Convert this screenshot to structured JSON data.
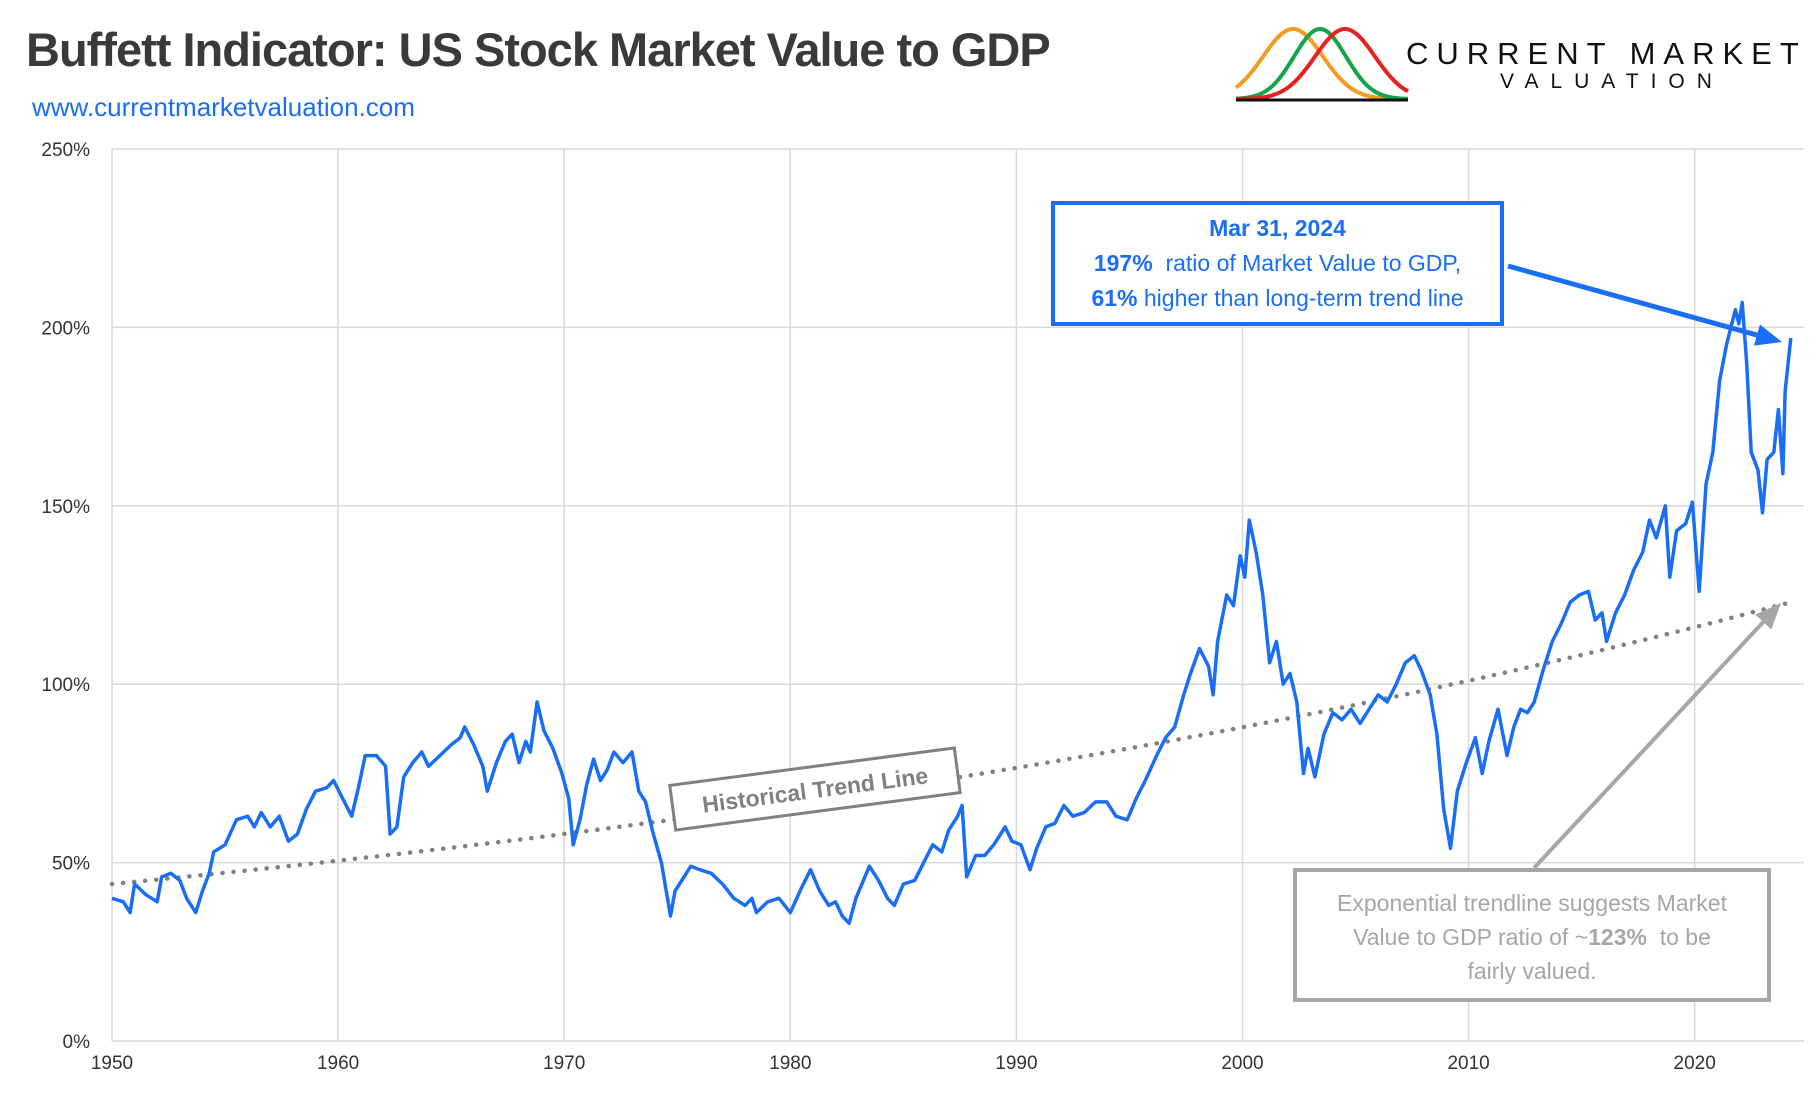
{
  "header": {
    "title": "Buffett Indicator: US Stock Market Value to GDP",
    "url": "www.currentmarketvaluation.com"
  },
  "logo": {
    "line1": "CURRENT MARKET",
    "line2": "VALUATION",
    "colors": [
      "#f39c1f",
      "#16a34a",
      "#e52222"
    ]
  },
  "annotations": {
    "latest": {
      "date": "Mar 31, 2024",
      "ratio": "197%",
      "ratio_text": "ratio of Market Value to GDP,",
      "above": "61%",
      "above_text": "higher than long-term trend line"
    },
    "trend_label": "Historical Trend Line",
    "fair": {
      "text1": "Exponential trendline suggests Market",
      "text2a": "Value to GDP ratio of ~",
      "value": "123%",
      "text2b": "to be",
      "text3": "fairly valued."
    }
  },
  "colors": {
    "series": "#1a6ef5",
    "trend": "#808080",
    "grid": "#d9d9d9",
    "fair_arrow": "#a6a6a6"
  },
  "chart_data": {
    "type": "line",
    "title": "Buffett Indicator: US Stock Market Value to GDP",
    "xlim": [
      1950,
      2024.5
    ],
    "ylim": [
      0,
      250
    ],
    "x_ticks": [
      "1950",
      "1960",
      "1970",
      "1980",
      "1990",
      "2000",
      "2010",
      "2020"
    ],
    "y_ticks": [
      "0%",
      "50%",
      "100%",
      "150%",
      "200%",
      "250%"
    ],
    "grid": true,
    "series": [
      {
        "x": [
          1950,
          1950.5,
          1950.8,
          1951,
          1951.5,
          1952,
          1952.2,
          1952.6,
          1953,
          1953.3,
          1953.7,
          1954,
          1954.3,
          1954.5,
          1955,
          1955.5,
          1956,
          1956.3,
          1956.6,
          1957,
          1957.4,
          1957.8,
          1958.2,
          1958.6,
          1959,
          1959.5,
          1959.8,
          1960.2,
          1960.6,
          1960.9,
          1961.2,
          1961.7,
          1962.1,
          1962.3,
          1962.6,
          1962.9,
          1963.3,
          1963.7,
          1964,
          1964.5,
          1965,
          1965.4,
          1965.6,
          1966,
          1966.4,
          1966.6,
          1967,
          1967.4,
          1967.7,
          1968,
          1968.3,
          1968.5,
          1968.8,
          1969.1,
          1969.5,
          1969.9,
          1970.2,
          1970.4,
          1970.7,
          1971,
          1971.3,
          1971.6,
          1971.9,
          1972.2,
          1972.6,
          1973,
          1973.3,
          1973.6,
          1973.9,
          1974.3,
          1974.7,
          1974.9,
          1975.3,
          1975.6,
          1976,
          1976.5,
          1977,
          1977.5,
          1978,
          1978.3,
          1978.5,
          1979,
          1979.5,
          1980,
          1980.5,
          1980.9,
          1981.3,
          1981.7,
          1982,
          1982.3,
          1982.6,
          1982.9,
          1983.5,
          1983.9,
          1984.3,
          1984.6,
          1985,
          1985.5,
          1985.9,
          1986.3,
          1986.7,
          1987,
          1987.4,
          1987.6,
          1987.8,
          1988.2,
          1988.6,
          1989,
          1989.5,
          1989.8,
          1990.2,
          1990.6,
          1990.9,
          1991.3,
          1991.7,
          1992.1,
          1992.5,
          1993,
          1993.5,
          1994,
          1994.4,
          1994.9,
          1995.3,
          1995.7,
          1996.2,
          1996.6,
          1997,
          1997.4,
          1997.7,
          1998.1,
          1998.5,
          1998.7,
          1998.9,
          1999.3,
          1999.6,
          1999.9,
          2000.1,
          2000.3,
          2000.6,
          2000.9,
          2001.2,
          2001.5,
          2001.8,
          2002.1,
          2002.4,
          2002.7,
          2002.9,
          2003.2,
          2003.6,
          2004,
          2004.4,
          2004.8,
          2005.2,
          2005.6,
          2006,
          2006.4,
          2006.8,
          2007.2,
          2007.6,
          2007.9,
          2008.3,
          2008.6,
          2008.9,
          2009.2,
          2009.5,
          2009.9,
          2010.3,
          2010.6,
          2010.9,
          2011.3,
          2011.7,
          2012,
          2012.3,
          2012.6,
          2012.9,
          2013.3,
          2013.7,
          2014.1,
          2014.5,
          2014.9,
          2015.3,
          2015.6,
          2015.9,
          2016.1,
          2016.5,
          2016.9,
          2017.3,
          2017.7,
          2018,
          2018.3,
          2018.7,
          2018.9,
          2019.2,
          2019.6,
          2019.9,
          2020.2,
          2020.5,
          2020.8,
          2021.1,
          2021.4,
          2021.8,
          2021.95,
          2022.1,
          2022.3,
          2022.5,
          2022.8,
          2023,
          2023.2,
          2023.5,
          2023.7,
          2023.9,
          2024,
          2024.25
        ],
        "y": [
          40,
          39,
          36,
          44,
          41,
          39,
          46,
          47,
          45,
          40,
          36,
          42,
          47,
          53,
          55,
          62,
          63,
          60,
          64,
          60,
          63,
          56,
          58,
          65,
          70,
          71,
          73,
          68,
          63,
          71,
          80,
          80,
          77,
          58,
          60,
          74,
          78,
          81,
          77,
          80,
          83,
          85,
          88,
          83,
          77,
          70,
          78,
          84,
          86,
          78,
          84,
          81,
          95,
          87,
          82,
          75,
          68,
          55,
          62,
          72,
          79,
          73,
          76,
          81,
          78,
          81,
          70,
          67,
          59,
          50,
          35,
          42,
          46,
          49,
          48,
          47,
          44,
          40,
          38,
          40,
          36,
          39,
          40,
          36,
          43,
          48,
          42,
          38,
          39,
          35,
          33,
          40,
          49,
          45,
          40,
          38,
          44,
          45,
          50,
          55,
          53,
          59,
          63,
          66,
          46,
          52,
          52,
          55,
          60,
          56,
          55,
          48,
          54,
          60,
          61,
          66,
          63,
          64,
          67,
          67,
          63,
          62,
          68,
          73,
          80,
          85,
          88,
          97,
          103,
          110,
          105,
          97,
          112,
          125,
          122,
          136,
          130,
          146,
          137,
          125,
          106,
          112,
          100,
          103,
          95,
          75,
          82,
          74,
          86,
          92,
          90,
          93,
          89,
          93,
          97,
          95,
          100,
          106,
          108,
          104,
          97,
          86,
          65,
          54,
          70,
          78,
          85,
          75,
          84,
          93,
          80,
          88,
          93,
          92,
          95,
          104,
          112,
          117,
          123,
          125,
          126,
          118,
          120,
          112,
          120,
          125,
          132,
          137,
          146,
          141,
          150,
          130,
          143,
          145,
          151,
          126,
          156,
          165,
          185,
          195,
          205,
          201,
          207,
          190,
          165,
          160,
          148,
          163,
          165,
          177,
          159,
          182,
          197
        ]
      },
      {
        "trend_start": [
          1950,
          44
        ],
        "trend_end": [
          2024.25,
          123
        ]
      }
    ]
  }
}
